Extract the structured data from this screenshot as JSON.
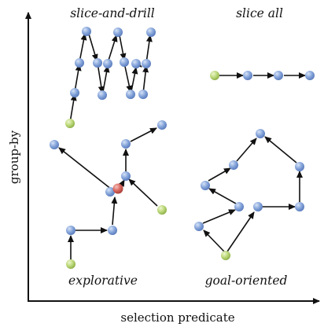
{
  "axes": {
    "x_label": "selection predicate",
    "y_label": "group-by"
  },
  "patterns": {
    "top_left": "slice-and-drill",
    "top_right": "slice all",
    "bottom_left": "explorative",
    "bottom_right": "goal-oriented"
  },
  "colors": {
    "node_blue": "#7f9fd6",
    "node_green": "#b7d66b",
    "node_red": "#d9685f",
    "edge": "#111111"
  }
}
